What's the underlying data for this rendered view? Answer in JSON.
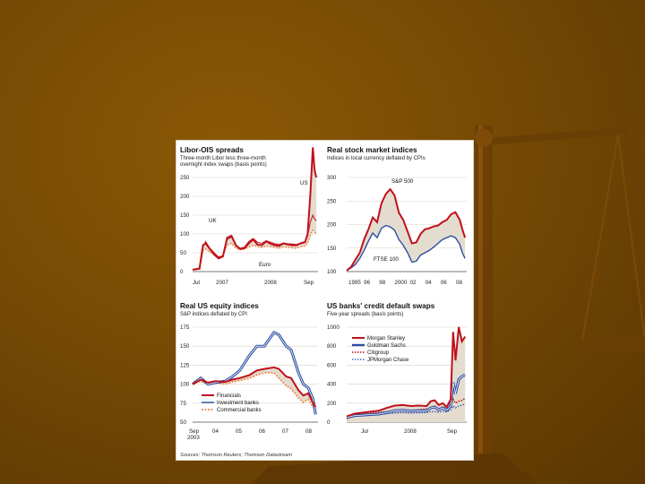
{
  "colors": {
    "background": "#774a04",
    "panel": "#ffffff",
    "red_line": "#c0111c",
    "blue_line": "#2c4ea3",
    "fill_shade": "#e3dccf",
    "orange_dots": "#f0884a",
    "grid": "#d9d2c4"
  },
  "source": "Sources: Thomson Reuters; Thomson Datastream",
  "chart_data": [
    {
      "type": "line",
      "title": "Libor-OIS spreads",
      "subtitle": "Three-month Libor less three-month overnight index swaps (basis points)",
      "yticks": [
        0,
        50,
        100,
        150,
        200,
        250
      ],
      "ylim": [
        0,
        250
      ],
      "xticks": [
        "Jul",
        "2007",
        "2008",
        "Sep"
      ],
      "xlim": [
        0,
        14.5
      ],
      "annotations": [
        "US",
        "UK",
        "Euro"
      ],
      "series": [
        {
          "name": "US",
          "x": [
            0,
            0.8,
            1,
            1.2,
            1.5,
            2,
            2.5,
            3,
            3.5,
            4,
            4.5,
            5,
            5.5,
            6,
            6.5,
            7,
            7.5,
            8,
            8.5,
            9,
            9.5,
            10,
            10.5,
            11,
            11.5,
            12,
            12.5,
            13,
            13.3,
            13.6,
            13.9,
            14.1,
            14.3
          ],
          "values": [
            5,
            8,
            40,
            70,
            75,
            60,
            45,
            35,
            40,
            90,
            95,
            70,
            60,
            62,
            75,
            85,
            72,
            70,
            80,
            74,
            70,
            68,
            75,
            72,
            70,
            70,
            75,
            78,
            100,
            200,
            330,
            270,
            250
          ]
        },
        {
          "name": "UK",
          "x": [
            0,
            0.8,
            1,
            1.2,
            1.5,
            2,
            2.5,
            3,
            3.5,
            4,
            4.5,
            5,
            5.5,
            6,
            6.5,
            7,
            7.5,
            8,
            8.5,
            9,
            9.5,
            10,
            10.5,
            11,
            11.5,
            12,
            12.5,
            13,
            13.3,
            13.6,
            13.9,
            14.1,
            14.3
          ],
          "values": [
            5,
            8,
            35,
            65,
            80,
            62,
            50,
            38,
            42,
            85,
            92,
            68,
            62,
            65,
            80,
            88,
            78,
            75,
            82,
            78,
            74,
            72,
            76,
            74,
            73,
            72,
            76,
            80,
            95,
            130,
            150,
            140,
            135
          ]
        },
        {
          "name": "Euro",
          "x": [
            0,
            0.8,
            1,
            1.2,
            1.5,
            2,
            2.5,
            3,
            3.5,
            4,
            4.5,
            5,
            5.5,
            6,
            6.5,
            7,
            7.5,
            8,
            8.5,
            9,
            9.5,
            10,
            10.5,
            11,
            11.5,
            12,
            12.5,
            13,
            13.3,
            13.6,
            13.9,
            14.1,
            14.3
          ],
          "values": [
            4,
            6,
            30,
            55,
            60,
            52,
            45,
            40,
            42,
            70,
            75,
            62,
            58,
            60,
            65,
            70,
            66,
            64,
            68,
            66,
            64,
            62,
            66,
            64,
            63,
            62,
            66,
            68,
            75,
            95,
            110,
            105,
            100
          ]
        }
      ]
    },
    {
      "type": "line",
      "title": "Real stock market indices",
      "subtitle": "Indices in local currency deflated by CPIs",
      "yticks": [
        100,
        150,
        200,
        250,
        300
      ],
      "ylim": [
        100,
        300
      ],
      "xticks": [
        "1995",
        "96",
        "98",
        "2000",
        "02",
        "04",
        "06",
        "08"
      ],
      "xlim": [
        1995,
        2008.8
      ],
      "annotations": [
        "S&P 500",
        "FTSE 100"
      ],
      "series": [
        {
          "name": "S&P 500",
          "x": [
            1995,
            1995.5,
            1996,
            1996.5,
            1997,
            1997.5,
            1998,
            1998.5,
            1999,
            1999.5,
            2000,
            2000.5,
            2001,
            2001.5,
            2002,
            2002.5,
            2003,
            2003.5,
            2004,
            2004.5,
            2005,
            2005.5,
            2006,
            2006.5,
            2007,
            2007.5,
            2008,
            2008.3,
            2008.6
          ],
          "values": [
            102,
            110,
            125,
            140,
            168,
            190,
            215,
            205,
            245,
            265,
            275,
            262,
            225,
            210,
            185,
            160,
            162,
            180,
            190,
            192,
            196,
            198,
            205,
            210,
            222,
            226,
            210,
            190,
            172
          ]
        },
        {
          "name": "FTSE 100",
          "x": [
            1995,
            1995.5,
            1996,
            1996.5,
            1997,
            1997.5,
            1998,
            1998.5,
            1999,
            1999.5,
            2000,
            2000.5,
            2001,
            2001.5,
            2002,
            2002.5,
            2003,
            2003.5,
            2004,
            2004.5,
            2005,
            2005.5,
            2006,
            2006.5,
            2007,
            2007.5,
            2008,
            2008.3,
            2008.6
          ],
          "values": [
            102,
            108,
            115,
            128,
            145,
            165,
            182,
            172,
            192,
            198,
            195,
            188,
            168,
            156,
            140,
            120,
            122,
            135,
            140,
            145,
            152,
            160,
            168,
            172,
            176,
            172,
            158,
            140,
            128
          ]
        }
      ]
    },
    {
      "type": "line",
      "title": "Real US equity indices",
      "subtitle": "S&P indices deflated by CPI",
      "yticks": [
        50,
        75,
        100,
        125,
        150,
        175
      ],
      "ylim": [
        50,
        175
      ],
      "xticks": [
        "Sep 2003",
        "04",
        "05",
        "06",
        "07",
        "08"
      ],
      "xlim": [
        2003.67,
        2008.8
      ],
      "series": [
        {
          "name": "Financials",
          "x": [
            2003.67,
            2004,
            2004.3,
            2004.6,
            2005,
            2005.3,
            2005.6,
            2006,
            2006.3,
            2006.6,
            2007,
            2007.2,
            2007.5,
            2007.7,
            2008,
            2008.2,
            2008.4,
            2008.6,
            2008.7
          ],
          "values": [
            100,
            106,
            102,
            104,
            103,
            106,
            108,
            112,
            118,
            120,
            122,
            120,
            110,
            108,
            92,
            85,
            88,
            75,
            70
          ]
        },
        {
          "name": "Investment banks",
          "x": [
            2003.67,
            2004,
            2004.3,
            2004.6,
            2005,
            2005.3,
            2005.6,
            2006,
            2006.3,
            2006.6,
            2007,
            2007.2,
            2007.5,
            2007.7,
            2008,
            2008.2,
            2008.4,
            2008.6,
            2008.7
          ],
          "values": [
            100,
            108,
            100,
            102,
            104,
            110,
            118,
            138,
            150,
            150,
            168,
            165,
            150,
            145,
            115,
            100,
            95,
            80,
            60
          ]
        },
        {
          "name": "Commercial banks",
          "x": [
            2003.67,
            2004,
            2004.3,
            2004.6,
            2005,
            2005.3,
            2005.6,
            2006,
            2006.3,
            2006.6,
            2007,
            2007.2,
            2007.5,
            2007.7,
            2008,
            2008.2,
            2008.4,
            2008.6,
            2008.7
          ],
          "values": [
            100,
            104,
            100,
            102,
            100,
            103,
            105,
            108,
            112,
            115,
            115,
            108,
            98,
            94,
            82,
            76,
            80,
            70,
            65
          ]
        }
      ]
    },
    {
      "type": "line",
      "title": "US banks' credit default swaps",
      "subtitle": "Five-year spreads (basis points)",
      "yticks": [
        0,
        200,
        400,
        600,
        800,
        1000
      ],
      "ylim": [
        0,
        1000
      ],
      "xticks": [
        "Jul",
        "2008",
        "Sep"
      ],
      "xlim": [
        0,
        15
      ],
      "series": [
        {
          "name": "Morgan Stanley",
          "x": [
            0,
            1,
            2,
            3,
            4,
            5,
            6,
            7,
            8,
            9,
            10,
            10.5,
            11,
            11.5,
            12,
            12.5,
            13,
            13.3,
            13.6,
            14,
            14.4,
            14.8
          ],
          "values": [
            60,
            90,
            100,
            110,
            120,
            150,
            175,
            180,
            170,
            175,
            170,
            220,
            230,
            180,
            200,
            160,
            240,
            950,
            650,
            1000,
            850,
            900
          ]
        },
        {
          "name": "Goldman Sachs",
          "x": [
            0,
            1,
            2,
            3,
            4,
            5,
            6,
            7,
            8,
            9,
            10,
            10.5,
            11,
            11.5,
            12,
            12.5,
            13,
            13.3,
            13.6,
            14,
            14.4,
            14.8
          ],
          "values": [
            50,
            70,
            75,
            80,
            85,
            100,
            120,
            125,
            118,
            120,
            120,
            150,
            160,
            130,
            150,
            125,
            170,
            420,
            300,
            450,
            480,
            500
          ]
        },
        {
          "name": "Citigroup",
          "x": [
            0,
            1,
            2,
            3,
            4,
            5,
            6,
            7,
            8,
            9,
            10,
            10.5,
            11,
            11.5,
            12,
            12.5,
            13,
            13.3,
            13.6,
            14,
            14.4,
            14.8
          ],
          "values": [
            40,
            80,
            90,
            95,
            100,
            110,
            120,
            130,
            120,
            130,
            140,
            150,
            150,
            140,
            160,
            150,
            180,
            240,
            200,
            220,
            230,
            250
          ]
        },
        {
          "name": "JPMorgan Chase",
          "x": [
            0,
            1,
            2,
            3,
            4,
            5,
            6,
            7,
            8,
            9,
            10,
            10.5,
            11,
            11.5,
            12,
            12.5,
            13,
            13.3,
            13.6,
            14,
            14.4,
            14.8
          ],
          "values": [
            35,
            60,
            70,
            75,
            80,
            90,
            95,
            100,
            95,
            98,
            100,
            110,
            112,
            105,
            115,
            108,
            130,
            170,
            150,
            170,
            180,
            190
          ]
        }
      ]
    }
  ]
}
